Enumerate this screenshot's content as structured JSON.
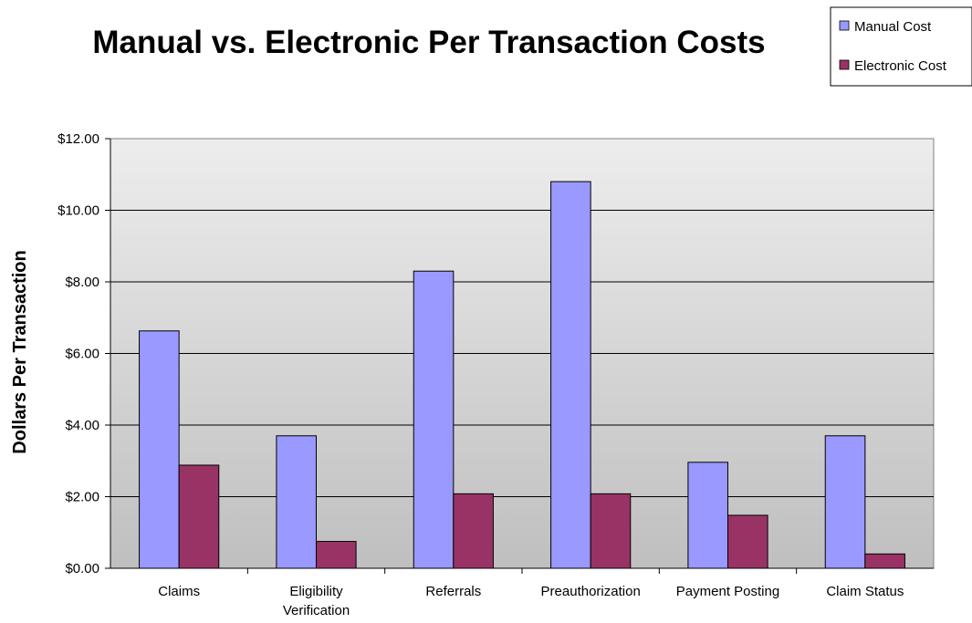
{
  "chart_data": {
    "type": "bar",
    "title": "Manual vs. Electronic Per Transaction Costs",
    "xlabel": "",
    "ylabel": "Dollars Per Transaction",
    "categories": [
      [
        "Claims"
      ],
      [
        "Eligibility",
        "Verification"
      ],
      [
        "Referrals"
      ],
      [
        "Preauthorization"
      ],
      [
        "Payment Posting"
      ],
      [
        "Claim Status"
      ]
    ],
    "series": [
      {
        "name": "Manual Cost",
        "color": "#9999ff",
        "values": [
          6.63,
          3.7,
          8.3,
          10.8,
          2.96,
          3.7
        ]
      },
      {
        "name": "Electronic Cost",
        "color": "#993366",
        "values": [
          2.88,
          0.75,
          2.08,
          2.08,
          1.48,
          0.4
        ]
      }
    ],
    "ylim": [
      0,
      12
    ],
    "yticks": [
      0,
      2,
      4,
      6,
      8,
      10,
      12
    ],
    "ytick_labels": [
      "$0.00",
      "$2.00",
      "$4.00",
      "$6.00",
      "$8.00",
      "$10.00",
      "$12.00"
    ],
    "grid": true,
    "legend_position": "top-right"
  }
}
